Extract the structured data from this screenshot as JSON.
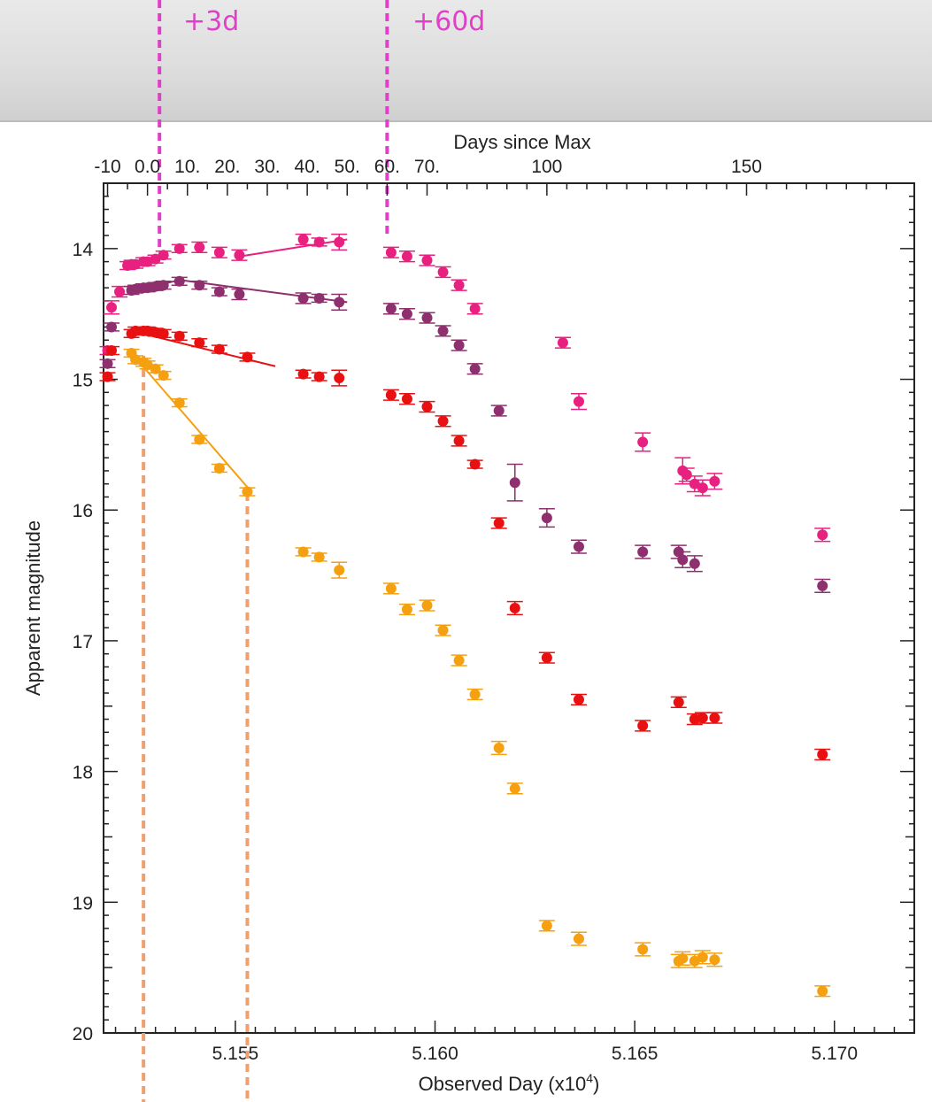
{
  "annotations": {
    "marker_a": "+3d",
    "marker_b": "+60d"
  },
  "chart_data": {
    "type": "scatter",
    "title": "",
    "xlabel": "Observed Day (x10",
    "xlabel_sup": "4",
    "xlabel_close": ")",
    "ylabel": "Apparent magnitude",
    "top_axis_label": "Days since Max",
    "y_inverted": true,
    "xlim": [
      51517,
      51720
    ],
    "ylim": [
      20,
      13.5
    ],
    "x_ticks": [
      51550,
      51600,
      51650,
      51700
    ],
    "x_tick_labels": [
      "5.155",
      "5.160",
      "5.165",
      "5.170"
    ],
    "y_ticks": [
      14,
      15,
      16,
      17,
      18,
      19,
      20
    ],
    "y_tick_labels": [
      "14",
      "15",
      "16",
      "17",
      "18",
      "19",
      "20"
    ],
    "top_ticks": [
      -10,
      0,
      10,
      20,
      30,
      40,
      50,
      60,
      70,
      100,
      150
    ],
    "top_tick_labels": [
      "-10",
      "0.0",
      "10.",
      "20.",
      "30.",
      "40.",
      "50.",
      "60.",
      "70.",
      "100",
      "150"
    ],
    "max_day": 51528,
    "markers": [
      {
        "label_key": "marker_a",
        "day_since_max": 3,
        "color": "#e040c8"
      },
      {
        "label_key": "marker_b",
        "day_since_max": 60,
        "color": "#e040c8"
      }
    ],
    "guide_lines": [
      {
        "x": 51527,
        "color": "#f0a070"
      },
      {
        "x": 51553,
        "color": "#f0a070"
      }
    ],
    "series": [
      {
        "color": "#e8207f",
        "x": [
          51518,
          51519,
          51521,
          51523,
          51524,
          51525,
          51527,
          51528,
          51530,
          51532,
          51536,
          51541,
          51546,
          51551,
          51567,
          51571,
          51576,
          51589,
          51593,
          51598,
          51602,
          51606,
          51610,
          51632,
          51636,
          51652,
          51662,
          51663,
          51665,
          51667,
          51670,
          51697
        ],
        "y": [
          14.78,
          14.45,
          14.33,
          14.13,
          14.12,
          14.12,
          14.1,
          14.1,
          14.08,
          14.05,
          14.0,
          13.99,
          14.03,
          14.05,
          13.93,
          13.95,
          13.95,
          14.03,
          14.06,
          14.09,
          14.18,
          14.28,
          14.46,
          14.72,
          15.17,
          15.48,
          15.7,
          15.73,
          15.8,
          15.83,
          15.78,
          16.19
        ],
        "yerr": [
          0.03,
          0.05,
          0.04,
          0.03,
          0.03,
          0.03,
          0.03,
          0.03,
          0.03,
          0.03,
          0.03,
          0.04,
          0.04,
          0.04,
          0.04,
          0.03,
          0.06,
          0.04,
          0.04,
          0.04,
          0.04,
          0.04,
          0.04,
          0.04,
          0.06,
          0.07,
          0.1,
          0.05,
          0.06,
          0.06,
          0.06,
          0.05
        ]
      },
      {
        "color": "#8e2f6e",
        "x": [
          51518,
          51519,
          51524,
          51525,
          51527,
          51528,
          51530,
          51532,
          51536,
          51541,
          51546,
          51551,
          51567,
          51571,
          51576,
          51589,
          51593,
          51598,
          51602,
          51606,
          51610,
          51616,
          51620,
          51628,
          51636,
          51652,
          51661,
          51662,
          51665,
          51697
        ],
        "y": [
          14.88,
          14.6,
          14.32,
          14.31,
          14.3,
          14.3,
          14.29,
          14.28,
          14.25,
          14.28,
          14.33,
          14.35,
          14.38,
          14.38,
          14.41,
          14.46,
          14.5,
          14.53,
          14.63,
          14.74,
          14.92,
          15.24,
          15.79,
          16.06,
          16.28,
          16.32,
          16.32,
          16.38,
          16.41,
          16.58
        ],
        "yerr": [
          0.03,
          0.03,
          0.03,
          0.03,
          0.03,
          0.03,
          0.03,
          0.03,
          0.03,
          0.03,
          0.03,
          0.04,
          0.04,
          0.03,
          0.06,
          0.04,
          0.04,
          0.04,
          0.04,
          0.04,
          0.04,
          0.04,
          0.14,
          0.07,
          0.05,
          0.05,
          0.05,
          0.06,
          0.06,
          0.05
        ]
      },
      {
        "color": "#e81010",
        "x": [
          51518,
          51519,
          51524,
          51525,
          51527,
          51528,
          51530,
          51532,
          51536,
          51541,
          51546,
          51553,
          51567,
          51571,
          51576,
          51589,
          51593,
          51598,
          51602,
          51606,
          51610,
          51616,
          51620,
          51628,
          51636,
          51652,
          51661,
          51665,
          51667,
          51670,
          51697
        ],
        "y": [
          14.98,
          14.78,
          14.65,
          14.63,
          14.63,
          14.63,
          14.64,
          14.65,
          14.67,
          14.72,
          14.77,
          14.83,
          14.96,
          14.98,
          14.99,
          15.12,
          15.15,
          15.21,
          15.32,
          15.47,
          15.65,
          16.1,
          16.75,
          17.13,
          17.45,
          17.65,
          17.47,
          17.6,
          17.59,
          17.59,
          17.87
        ],
        "yerr": [
          0.03,
          0.03,
          0.03,
          0.03,
          0.03,
          0.03,
          0.03,
          0.03,
          0.03,
          0.03,
          0.03,
          0.03,
          0.03,
          0.03,
          0.06,
          0.04,
          0.04,
          0.04,
          0.04,
          0.04,
          0.03,
          0.04,
          0.05,
          0.04,
          0.04,
          0.04,
          0.04,
          0.04,
          0.04,
          0.04,
          0.04
        ]
      },
      {
        "color": "#f5a010",
        "x": [
          51524,
          51525,
          51527,
          51528,
          51530,
          51532,
          51536,
          51541,
          51546,
          51553,
          51567,
          51571,
          51576,
          51589,
          51593,
          51598,
          51602,
          51606,
          51610,
          51616,
          51620,
          51628,
          51636,
          51652,
          51661,
          51662,
          51665,
          51667,
          51670,
          51697
        ],
        "y": [
          14.8,
          14.85,
          14.87,
          14.89,
          14.92,
          14.97,
          15.18,
          15.46,
          15.68,
          15.86,
          16.32,
          16.36,
          16.46,
          16.6,
          16.76,
          16.73,
          16.92,
          17.15,
          17.41,
          17.82,
          18.13,
          19.18,
          19.28,
          19.36,
          19.45,
          19.43,
          19.45,
          19.42,
          19.44,
          19.68
        ],
        "yerr": [
          0.03,
          0.03,
          0.03,
          0.03,
          0.03,
          0.03,
          0.03,
          0.03,
          0.03,
          0.03,
          0.03,
          0.03,
          0.06,
          0.04,
          0.04,
          0.04,
          0.04,
          0.04,
          0.04,
          0.05,
          0.04,
          0.04,
          0.05,
          0.05,
          0.05,
          0.05,
          0.05,
          0.05,
          0.05,
          0.04
        ]
      }
    ],
    "fit_lines": [
      {
        "color": "#e8207f",
        "x": [
          51524,
          51533
        ],
        "y": [
          14.14,
          14.06
        ]
      },
      {
        "color": "#e8207f",
        "x": [
          51551,
          51578
        ],
        "y": [
          14.06,
          13.93
        ]
      },
      {
        "color": "#8e2f6e",
        "x": [
          51524,
          51536
        ],
        "y": [
          14.33,
          14.24
        ]
      },
      {
        "color": "#8e2f6e",
        "x": [
          51536,
          51578
        ],
        "y": [
          14.24,
          14.41
        ]
      },
      {
        "color": "#e81010",
        "x": [
          51524,
          51560
        ],
        "y": [
          14.63,
          14.9
        ]
      },
      {
        "color": "#f5a010",
        "x": [
          51524,
          51554
        ],
        "y": [
          14.8,
          15.86
        ]
      }
    ]
  }
}
